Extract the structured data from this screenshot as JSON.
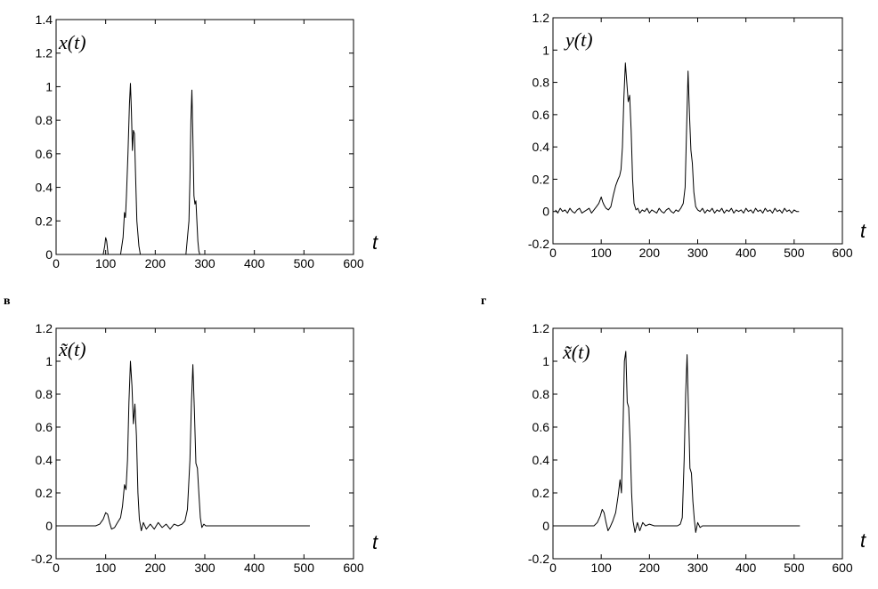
{
  "panel_letters": {
    "c": "в",
    "d": "г"
  },
  "chart_data": [
    {
      "type": "line",
      "inner_label": "x(t)",
      "xlabel": "t",
      "xlim": [
        0,
        600
      ],
      "ylim": [
        0,
        1.4
      ],
      "xticks": [
        0,
        100,
        200,
        300,
        400,
        500,
        600
      ],
      "yticks": [
        0,
        0.2,
        0.4,
        0.6,
        0.8,
        1,
        1.2,
        1.4
      ],
      "grid": false,
      "x": [
        75,
        95,
        98,
        100,
        102,
        105,
        120,
        130,
        135,
        138,
        140,
        142,
        145,
        148,
        150,
        152,
        154,
        156,
        158,
        160,
        163,
        167,
        170,
        175,
        200,
        235,
        262,
        268,
        270,
        272,
        274,
        276,
        278,
        280,
        282,
        284,
        286,
        288,
        290,
        294,
        298,
        303,
        310
      ],
      "y": [
        0,
        0,
        0.05,
        0.1,
        0.08,
        0,
        0,
        0,
        0.1,
        0.25,
        0.22,
        0.35,
        0.6,
        0.9,
        1.02,
        0.85,
        0.62,
        0.74,
        0.72,
        0.5,
        0.2,
        0.05,
        0,
        0,
        0,
        0,
        0,
        0.2,
        0.45,
        0.8,
        0.98,
        0.7,
        0.35,
        0.3,
        0.32,
        0.2,
        0.08,
        0.02,
        0,
        0,
        0,
        0,
        0
      ]
    },
    {
      "type": "line",
      "inner_label": "y(t)",
      "xlabel": "t",
      "xlim": [
        0,
        600
      ],
      "ylim": [
        -0.2,
        1.2
      ],
      "xticks": [
        0,
        100,
        200,
        300,
        400,
        500,
        600
      ],
      "yticks": [
        -0.2,
        0,
        0.2,
        0.4,
        0.6,
        0.8,
        1,
        1.2
      ],
      "grid": false,
      "x": [
        5,
        10,
        15,
        20,
        25,
        30,
        35,
        40,
        45,
        50,
        55,
        60,
        65,
        70,
        75,
        80,
        85,
        90,
        95,
        100,
        103,
        106,
        110,
        115,
        120,
        125,
        130,
        135,
        138,
        141,
        144,
        147,
        150,
        153,
        156,
        159,
        162,
        165,
        168,
        172,
        176,
        180,
        185,
        190,
        195,
        200,
        205,
        210,
        215,
        220,
        225,
        230,
        235,
        240,
        245,
        250,
        255,
        260,
        265,
        270,
        274,
        277,
        280,
        283,
        286,
        289,
        292,
        296,
        300,
        305,
        310,
        315,
        320,
        325,
        330,
        335,
        340,
        345,
        350,
        355,
        360,
        365,
        370,
        375,
        380,
        385,
        390,
        395,
        400,
        405,
        410,
        415,
        420,
        425,
        430,
        435,
        440,
        445,
        450,
        455,
        460,
        465,
        470,
        475,
        480,
        485,
        490,
        495,
        500,
        505,
        510
      ],
      "y": [
        0.01,
        -0.01,
        0.02,
        0,
        0.01,
        -0.01,
        0.02,
        0,
        -0.01,
        0.01,
        0.02,
        -0.01,
        0,
        0.01,
        0.02,
        -0.01,
        0.01,
        0.03,
        0.05,
        0.09,
        0.06,
        0.04,
        0.02,
        0.01,
        0.03,
        0.1,
        0.16,
        0.2,
        0.22,
        0.26,
        0.4,
        0.7,
        0.92,
        0.8,
        0.68,
        0.72,
        0.5,
        0.2,
        0.05,
        0.01,
        0.02,
        -0.01,
        0.01,
        0,
        0.02,
        -0.01,
        0.01,
        0,
        -0.01,
        0.02,
        0,
        -0.01,
        0.01,
        0.02,
        0,
        -0.01,
        0.01,
        0,
        0.02,
        0.05,
        0.15,
        0.5,
        0.87,
        0.6,
        0.38,
        0.3,
        0.12,
        0.03,
        0.01,
        0,
        0.02,
        -0.01,
        0.01,
        0,
        0.02,
        -0.01,
        0.01,
        0,
        0.02,
        -0.01,
        0.01,
        0,
        0.02,
        -0.01,
        0.01,
        0,
        0.01,
        -0.01,
        0.02,
        0,
        0.01,
        -0.01,
        0.02,
        0,
        0.01,
        -0.01,
        0.02,
        0,
        0.01,
        -0.01,
        0.02,
        0,
        0.01,
        -0.01,
        0.02,
        0,
        0.01,
        -0.01,
        0.01,
        0,
        0
      ]
    },
    {
      "type": "line",
      "inner_label": "x̃(t)",
      "xlabel": "t",
      "xlim": [
        0,
        600
      ],
      "ylim": [
        -0.2,
        1.2
      ],
      "xticks": [
        0,
        100,
        200,
        300,
        400,
        500,
        600
      ],
      "yticks": [
        -0.2,
        0,
        0.2,
        0.4,
        0.6,
        0.8,
        1,
        1.2
      ],
      "grid": false,
      "x": [
        5,
        30,
        60,
        80,
        88,
        95,
        100,
        104,
        108,
        112,
        118,
        124,
        130,
        134,
        138,
        141,
        144,
        147,
        150,
        153,
        156,
        159,
        162,
        165,
        168,
        172,
        176,
        182,
        190,
        198,
        206,
        214,
        222,
        230,
        238,
        246,
        254,
        260,
        265,
        270,
        273,
        276,
        279,
        282,
        285,
        288,
        291,
        294,
        298,
        302,
        308,
        315,
        325,
        335,
        345,
        360,
        380,
        400,
        420,
        440,
        460,
        480,
        500,
        512
      ],
      "y": [
        0,
        0,
        0,
        0,
        0.01,
        0.04,
        0.08,
        0.07,
        0.02,
        -0.02,
        -0.01,
        0.02,
        0.05,
        0.12,
        0.25,
        0.22,
        0.4,
        0.75,
        1.0,
        0.85,
        0.62,
        0.74,
        0.55,
        0.2,
        0.04,
        -0.03,
        0.02,
        -0.02,
        0.01,
        -0.02,
        0.02,
        -0.01,
        0.01,
        -0.02,
        0.01,
        0,
        0.01,
        0.03,
        0.1,
        0.4,
        0.75,
        0.98,
        0.7,
        0.38,
        0.35,
        0.2,
        0.05,
        -0.01,
        0.01,
        0,
        0,
        0,
        0,
        0,
        0,
        0,
        0,
        0,
        0,
        0,
        0,
        0,
        0,
        0
      ]
    },
    {
      "type": "line",
      "inner_label": "x̃(t)",
      "xlabel": "t",
      "xlim": [
        0,
        600
      ],
      "ylim": [
        -0.2,
        1.2
      ],
      "xticks": [
        0,
        100,
        200,
        300,
        400,
        500,
        600
      ],
      "yticks": [
        -0.2,
        0,
        0.2,
        0.4,
        0.6,
        0.8,
        1,
        1.2
      ],
      "grid": false,
      "x": [
        5,
        40,
        70,
        85,
        92,
        98,
        102,
        106,
        110,
        114,
        118,
        124,
        130,
        135,
        139,
        142,
        145,
        148,
        151,
        154,
        157,
        160,
        163,
        166,
        170,
        175,
        180,
        186,
        192,
        200,
        210,
        220,
        230,
        240,
        250,
        258,
        264,
        268,
        272,
        275,
        278,
        281,
        284,
        287,
        290,
        293,
        296,
        300,
        305,
        310,
        320,
        330,
        345,
        360,
        380,
        400,
        420,
        440,
        460,
        480,
        500,
        512
      ],
      "y": [
        0,
        0,
        0,
        0,
        0.02,
        0.06,
        0.1,
        0.08,
        0.02,
        -0.03,
        -0.01,
        0.03,
        0.08,
        0.18,
        0.28,
        0.2,
        0.55,
        1.0,
        1.06,
        0.75,
        0.72,
        0.5,
        0.2,
        0.03,
        -0.04,
        0.02,
        -0.03,
        0.02,
        0,
        0.01,
        0,
        0,
        0,
        0,
        0,
        0,
        0.01,
        0.05,
        0.4,
        0.8,
        1.04,
        0.7,
        0.35,
        0.32,
        0.15,
        0.04,
        -0.04,
        0.02,
        -0.01,
        0,
        0,
        0,
        0,
        0,
        0,
        0,
        0,
        0,
        0,
        0,
        0,
        0
      ]
    }
  ]
}
